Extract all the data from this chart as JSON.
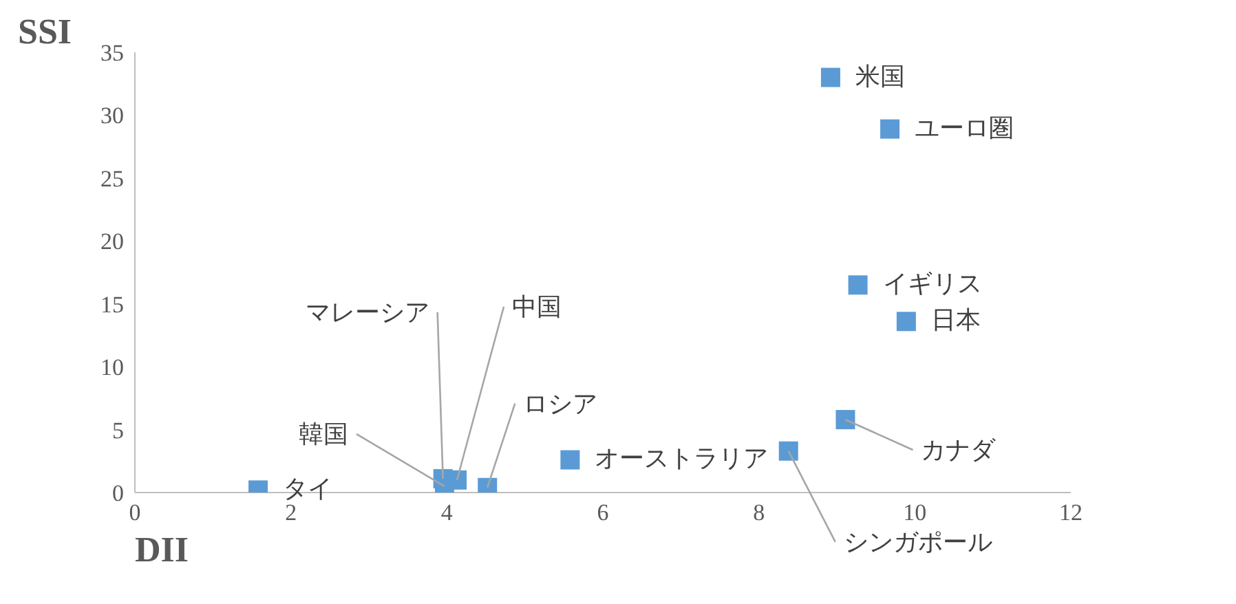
{
  "chart_data": {
    "type": "scatter",
    "xlabel": "DII",
    "ylabel": "SSI",
    "x": [
      8.92,
      9.68,
      9.27,
      9.89,
      9.11,
      8.38,
      5.58,
      4.52,
      4.13,
      3.95,
      3.97,
      1.58
    ],
    "values": [
      33.0,
      28.9,
      16.5,
      13.6,
      5.8,
      3.3,
      2.6,
      0.4,
      1.0,
      1.1,
      0.5,
      0.2
    ],
    "color": "#5b9bd5",
    "marker": "square",
    "xlim": [
      0,
      12
    ],
    "xticks": [
      0,
      2,
      4,
      6,
      8,
      10,
      12
    ],
    "ylim": [
      0,
      35
    ],
    "yticks": [
      0,
      5,
      10,
      15,
      20,
      25,
      30,
      35
    ],
    "grid": false,
    "legend": false,
    "annotations": [
      {
        "text": "米国",
        "x": 8.92,
        "y": 33.0
      },
      {
        "text": "ユーロ圏",
        "x": 9.68,
        "y": 28.9
      },
      {
        "text": "イギリス",
        "x": 9.27,
        "y": 16.5
      },
      {
        "text": "日本",
        "x": 9.89,
        "y": 13.6
      },
      {
        "text": "カナダ",
        "x": 9.11,
        "y": 5.8
      },
      {
        "text": "シンガポール",
        "x": 8.38,
        "y": 3.3
      },
      {
        "text": "オーストラリア",
        "x": 5.58,
        "y": 2.6
      },
      {
        "text": "ロシア",
        "x": 4.52,
        "y": 0.4
      },
      {
        "text": "中国",
        "x": 4.13,
        "y": 1.0
      },
      {
        "text": "マレーシア",
        "x": 3.95,
        "y": 1.1
      },
      {
        "text": "韓国",
        "x": 3.97,
        "y": 0.5
      },
      {
        "text": "タイ",
        "x": 1.58,
        "y": 0.2
      }
    ]
  }
}
